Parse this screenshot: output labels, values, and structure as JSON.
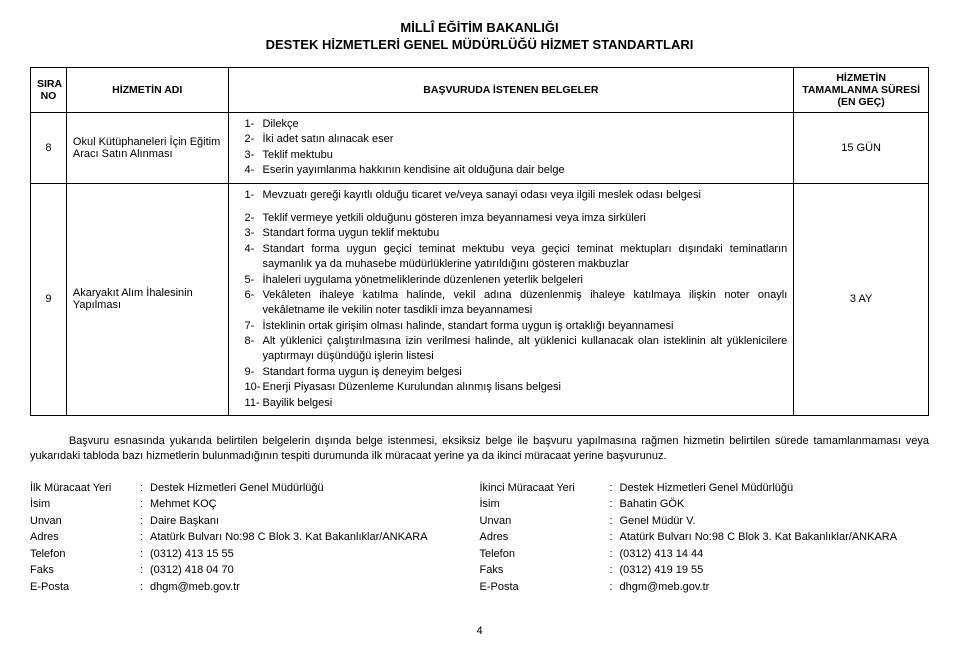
{
  "header": {
    "title1": "MİLLÎ EĞİTİM BAKANLIĞI",
    "title2": "DESTEK HİZMETLERİ GENEL MÜDÜRLÜĞÜ HİZMET STANDARTLARI"
  },
  "columns": {
    "sira": "SIRA NO",
    "adi": "HİZMETİN ADI",
    "belgeler": "BAŞVURUDA İSTENEN BELGELER",
    "sure": "HİZMETİN TAMAMLANMA SÜRESİ (EN GEÇ)"
  },
  "row8": {
    "no": "8",
    "adi": "Okul Kütüphaneleri İçin Eğitim Aracı Satın Alınması",
    "belgeler": [
      {
        "n": "1-",
        "t": "Dilekçe"
      },
      {
        "n": "2-",
        "t": "İki adet satın alınacak eser"
      },
      {
        "n": "3-",
        "t": "Teklif mektubu"
      },
      {
        "n": "4-",
        "t": "Eserin yayımlanma hakkının kendisine ait olduğuna dair belge"
      }
    ],
    "sure": "15 GÜN"
  },
  "row9": {
    "no": "9",
    "adi": "Akaryakıt Alım İhalesinin Yapılması",
    "group1": [
      {
        "n": "1-",
        "t": "Mevzuatı gereği kayıtlı olduğu ticaret ve/veya sanayi odası veya ilgili meslek odası belgesi"
      }
    ],
    "group2": [
      {
        "n": "2-",
        "t": "Teklif vermeye yetkili olduğunu gösteren imza beyannamesi veya imza sirküleri"
      },
      {
        "n": "3-",
        "t": "Standart forma uygun teklif mektubu"
      },
      {
        "n": "4-",
        "t": "Standart forma uygun geçici teminat mektubu veya geçici teminat mektupları dışındaki teminatların saymanlık ya da muhasebe müdürlüklerine yatırıldığını gösteren makbuzlar"
      },
      {
        "n": "5-",
        "t": "İhaleleri uygulama yönetmeliklerinde düzenlenen yeterlik belgeleri"
      },
      {
        "n": "6-",
        "t": "Vekâleten ihaleye katılma halinde, vekil adına düzenlenmiş ihaleye katılmaya ilişkin noter onaylı vekâletname ile vekilin noter tasdikli imza beyannamesi"
      },
      {
        "n": "7-",
        "t": "İsteklinin ortak girişim olması halinde, standart forma uygun iş ortaklığı beyannamesi"
      },
      {
        "n": "8-",
        "t": "Alt yüklenici çalıştırılmasına izin verilmesi halinde, alt yüklenici kullanacak olan isteklinin alt yüklenicilere yaptırmayı düşündüğü işlerin listesi"
      },
      {
        "n": "9-",
        "t": "Standart forma uygun iş deneyim belgesi"
      },
      {
        "n": "10-",
        "t": "Enerji Piyasası Düzenleme Kurulundan alınmış lisans belgesi"
      },
      {
        "n": "11-",
        "t": "Bayilik belgesi"
      }
    ],
    "sure": "3 AY"
  },
  "footer_note": "Başvuru esnasında yukarıda belirtilen belgelerin dışında belge istenmesi, eksiksiz belge ile başvuru yapılmasına rağmen hizmetin belirtilen sürede tamamlanmaması veya yukarıdaki tabloda bazı hizmetlerin bulunmadığının tespiti durumunda ilk müracaat yerine ya da ikinci müracaat yerine başvurunuz.",
  "contact_labels": {
    "ilk": "İlk Müracaat Yeri",
    "ikinci": "İkinci Müracaat Yeri",
    "isim": "İsim",
    "unvan": "Unvan",
    "adres": "Adres",
    "telefon": "Telefon",
    "faks": "Faks",
    "eposta": "E-Posta"
  },
  "contact1": {
    "yer": "Destek Hizmetleri Genel Müdürlüğü",
    "isim": "Mehmet KOÇ",
    "unvan": "Daire Başkanı",
    "adres": "Atatürk Bulvarı No:98 C Blok 3. Kat Bakanlıklar/ANKARA",
    "telefon": "(0312) 413 15 55",
    "faks": "(0312) 418 04 70",
    "eposta": "dhgm@meb.gov.tr"
  },
  "contact2": {
    "yer": "Destek Hizmetleri Genel Müdürlüğü",
    "isim": "Bahatin GÖK",
    "unvan": "Genel Müdür V.",
    "adres": "Atatürk Bulvarı No:98 C Blok 3. Kat Bakanlıklar/ANKARA",
    "telefon": "(0312) 413 14 44",
    "faks": "(0312) 419 19 55",
    "eposta": "dhgm@meb.gov.tr"
  },
  "page_number": "4"
}
